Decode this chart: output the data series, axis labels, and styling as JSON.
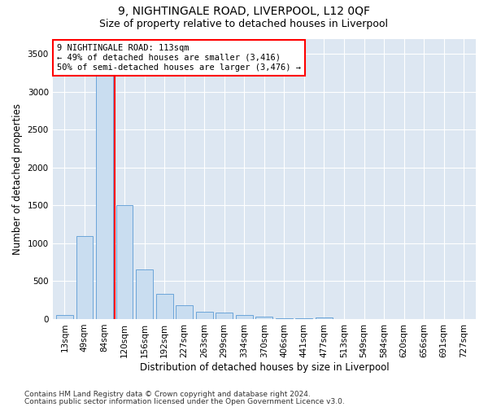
{
  "title": "9, NIGHTINGALE ROAD, LIVERPOOL, L12 0QF",
  "subtitle": "Size of property relative to detached houses in Liverpool",
  "xlabel": "Distribution of detached houses by size in Liverpool",
  "ylabel": "Number of detached properties",
  "footnote1": "Contains HM Land Registry data © Crown copyright and database right 2024.",
  "footnote2": "Contains public sector information licensed under the Open Government Licence v3.0.",
  "categories": [
    "13sqm",
    "49sqm",
    "84sqm",
    "120sqm",
    "156sqm",
    "192sqm",
    "227sqm",
    "263sqm",
    "299sqm",
    "334sqm",
    "370sqm",
    "406sqm",
    "441sqm",
    "477sqm",
    "513sqm",
    "549sqm",
    "584sqm",
    "620sqm",
    "656sqm",
    "691sqm",
    "727sqm"
  ],
  "values": [
    50,
    1100,
    3400,
    1500,
    650,
    330,
    185,
    100,
    90,
    50,
    30,
    10,
    5,
    25,
    0,
    0,
    0,
    0,
    0,
    0,
    0
  ],
  "bar_color": "#c9ddf0",
  "bar_edge_color": "#5b9bd5",
  "vline_x": 2.5,
  "vline_color": "red",
  "annotation_lines": [
    "9 NIGHTINGALE ROAD: 113sqm",
    "← 49% of detached houses are smaller (3,416)",
    "50% of semi-detached houses are larger (3,476) →"
  ],
  "annotation_box_color": "white",
  "annotation_box_edge": "red",
  "ylim": [
    0,
    3700
  ],
  "yticks": [
    0,
    500,
    1000,
    1500,
    2000,
    2500,
    3000,
    3500
  ],
  "plot_bg_color": "#dde7f2",
  "fig_bg_color": "#ffffff",
  "title_fontsize": 10,
  "subtitle_fontsize": 9,
  "axis_label_fontsize": 8.5,
  "tick_fontsize": 7.5,
  "annotation_fontsize": 7.5,
  "footnote_fontsize": 6.5
}
